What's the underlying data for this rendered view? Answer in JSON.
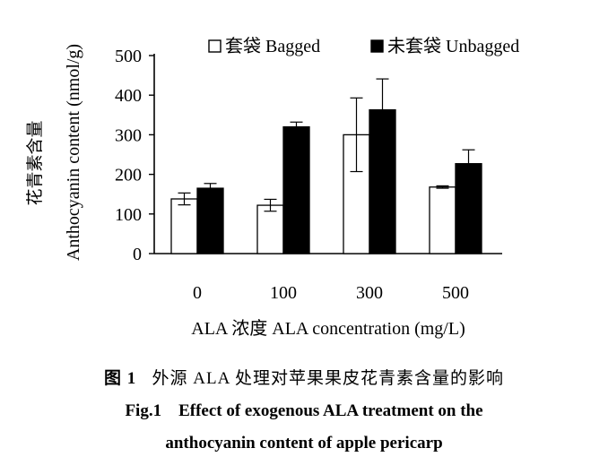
{
  "chart_data": {
    "type": "bar",
    "categories": [
      "0",
      "100",
      "300",
      "500"
    ],
    "series": [
      {
        "name": "套袋 Bagged",
        "fill": "#ffffff",
        "values": [
          138,
          122,
          300,
          168
        ],
        "errors": [
          15,
          15,
          93,
          3
        ]
      },
      {
        "name": "未套袋 Unbagged",
        "fill": "#000000",
        "values": [
          165,
          320,
          363,
          227
        ],
        "errors": [
          12,
          12,
          78,
          35
        ]
      }
    ],
    "ylim": [
      0,
      500
    ],
    "yticks": [
      "0",
      "100",
      "200",
      "300",
      "400",
      "500"
    ],
    "ylabel_zh": "花青素含量",
    "ylabel_en": "Anthocyanin content (nmol/g)",
    "xlabel": "ALA 浓度  ALA concentration (mg/L)",
    "legend_position": "top-right",
    "grid": false
  },
  "caption": {
    "zh_fig": "图 1",
    "zh_text": "外源 ALA 处理对苹果果皮花青素含量的影响",
    "en_line1": "Fig.1    Effect of exogenous ALA treatment on the",
    "en_line2": "anthocyanin content of apple pericarp"
  }
}
